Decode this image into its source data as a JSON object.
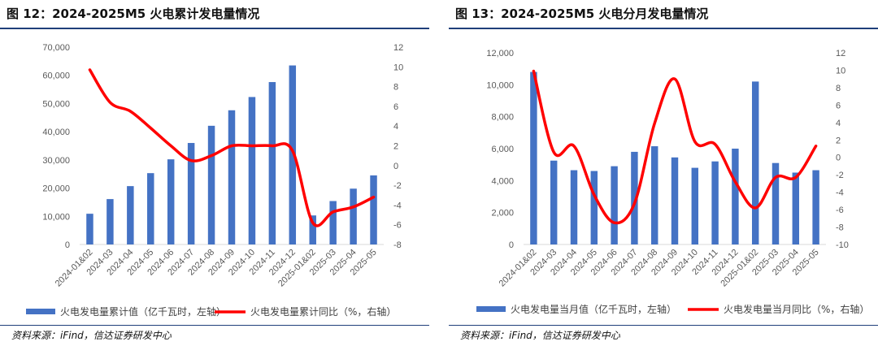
{
  "chart_data": [
    {
      "type": "bar",
      "title": "图 12：2024-2025M5 火电累计发电量情况",
      "source": "资料来源：iFind，信达证券研发中心",
      "categories": [
        "2024-01&02",
        "2024-03",
        "2024-04",
        "2024-05",
        "2024-06",
        "2024-07",
        "2024-08",
        "2024-09",
        "2024-10",
        "2024-11",
        "2024-12",
        "2025-01&02",
        "2025-03",
        "2025-04",
        "2025-05"
      ],
      "left_axis": {
        "min": 0,
        "max": 70000,
        "step": 10000,
        "ticks": [
          "0",
          "10,000",
          "20,000",
          "30,000",
          "40,000",
          "50,000",
          "60,000",
          "70,000"
        ]
      },
      "right_axis": {
        "min": -8,
        "max": 12,
        "step": 2,
        "ticks": [
          "-8",
          "-6",
          "-4",
          "-2",
          "0",
          "2",
          "4",
          "6",
          "8",
          "10",
          "12"
        ]
      },
      "series": [
        {
          "name": "火电发电量累计值（亿千瓦时，左轴）",
          "type": "bar",
          "axis": "left",
          "color": "#4472c4",
          "values": [
            10900,
            16100,
            20700,
            25300,
            30200,
            36000,
            42100,
            47600,
            52300,
            57600,
            63500,
            10300,
            15400,
            19800,
            24500
          ]
        },
        {
          "name": "火电发电量累计同比（%，右轴）",
          "type": "line",
          "axis": "right",
          "color": "#ff0000",
          "values": [
            9.7,
            6.4,
            5.5,
            3.8,
            2.0,
            0.5,
            1.0,
            2.0,
            2.0,
            2.0,
            1.5,
            -5.8,
            -4.7,
            -4.2,
            -3.2
          ]
        }
      ],
      "legend_position": "bottom"
    },
    {
      "type": "bar",
      "title": "图 13：2024-2025M5 火电分月发电量情况",
      "source": "资料来源：iFind，信达证券研发中心",
      "categories": [
        "2024-01&02",
        "2024-03",
        "2024-04",
        "2024-05",
        "2024-06",
        "2024-07",
        "2024-08",
        "2024-09",
        "2024-10",
        "2024-11",
        "2024-12",
        "2025-01&02",
        "2025-03",
        "2025-04",
        "2025-05"
      ],
      "left_axis": {
        "min": 0,
        "max": 12000,
        "step": 2000,
        "ticks": [
          "0",
          "2,000",
          "4,000",
          "6,000",
          "8,000",
          "10,000",
          "12,000"
        ]
      },
      "right_axis": {
        "min": -10,
        "max": 12,
        "step": 2,
        "ticks": [
          "-10",
          "-8",
          "-6",
          "-4",
          "-2",
          "0",
          "2",
          "4",
          "6",
          "8",
          "10",
          "12"
        ]
      },
      "series": [
        {
          "name": "火电发电量当月值（亿千瓦时，左轴）",
          "type": "bar",
          "axis": "left",
          "color": "#4472c4",
          "values": [
            10800,
            5250,
            4650,
            4600,
            4900,
            5800,
            6150,
            5450,
            4800,
            5200,
            6000,
            10200,
            5100,
            4500,
            4650
          ]
        },
        {
          "name": "火电发电量当月同比（%，右轴）",
          "type": "line",
          "axis": "right",
          "color": "#ff0000",
          "values": [
            9.9,
            0.6,
            1.3,
            -4.3,
            -7.5,
            -5.3,
            3.9,
            9.0,
            1.8,
            1.5,
            -2.8,
            -5.8,
            -2.3,
            -2.3,
            1.3
          ]
        }
      ],
      "legend_position": "bottom"
    }
  ]
}
